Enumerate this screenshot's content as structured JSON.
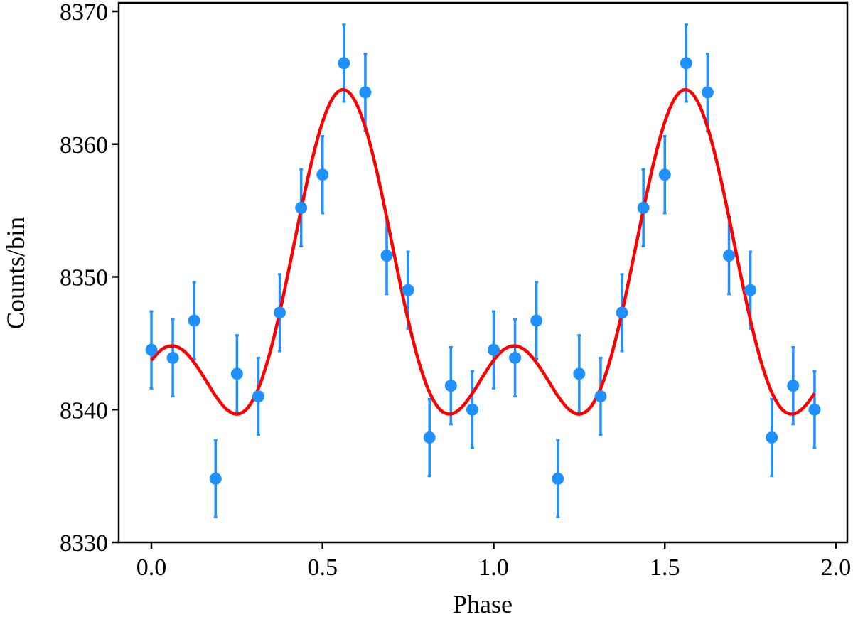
{
  "chart_data": {
    "type": "scatter",
    "title": "",
    "xlabel": "Phase",
    "ylabel": "Counts/bin",
    "xlim": [
      -0.095,
      2.03
    ],
    "ylim": [
      8330,
      8370
    ],
    "x_ticks": [
      0.0,
      0.5,
      1.0,
      1.5,
      2.0
    ],
    "x_tick_labels": [
      "0.0",
      "0.5",
      "1.0",
      "1.5",
      "2.0"
    ],
    "y_ticks": [
      8330,
      8340,
      8350,
      8360,
      8370
    ],
    "y_tick_labels": [
      "8330",
      "8340",
      "8350",
      "8360",
      "8370"
    ],
    "grid": false,
    "legend": "none",
    "series": [
      {
        "type": "errorbar",
        "color": "#1e90ff",
        "x": [
          0.0,
          0.0625,
          0.125,
          0.1875,
          0.25,
          0.3125,
          0.375,
          0.4375,
          0.5,
          0.5625,
          0.625,
          0.6875,
          0.75,
          0.8125,
          0.875,
          0.9375,
          1.0,
          1.0625,
          1.125,
          1.1875,
          1.25,
          1.3125,
          1.375,
          1.4375,
          1.5,
          1.5625,
          1.625,
          1.6875,
          1.75,
          1.8125,
          1.875,
          1.9375
        ],
        "y": [
          8344.5,
          8343.9,
          8346.7,
          8334.8,
          8342.7,
          8341.0,
          8347.3,
          8355.2,
          8357.7,
          8366.1,
          8363.9,
          8351.6,
          8349.0,
          8337.9,
          8341.8,
          8340.0,
          8344.5,
          8343.9,
          8346.7,
          8334.8,
          8342.7,
          8341.0,
          8347.3,
          8355.2,
          8357.7,
          8366.1,
          8363.9,
          8351.6,
          8349.0,
          8337.9,
          8341.8,
          8340.0
        ],
        "yerr": 2.9
      },
      {
        "type": "line",
        "color": "#ff0000",
        "x": [
          0.0,
          0.03125,
          0.0625,
          0.09375,
          0.125,
          0.15625,
          0.1875,
          0.21875,
          0.25,
          0.28125,
          0.3125,
          0.34375,
          0.375,
          0.40625,
          0.4375,
          0.46875,
          0.5,
          0.53125,
          0.5625,
          0.59375,
          0.625,
          0.65625,
          0.6875,
          0.71875,
          0.75,
          0.78125,
          0.8125,
          0.84375,
          0.875,
          0.90625,
          0.9375,
          0.96875,
          1.0,
          1.03125,
          1.0625,
          1.09375,
          1.125,
          1.15625,
          1.1875,
          1.21875,
          1.25,
          1.28125,
          1.3125,
          1.34375,
          1.375,
          1.40625,
          1.4375,
          1.46875,
          1.5,
          1.53125,
          1.5625,
          1.59375,
          1.625,
          1.65625,
          1.6875,
          1.71875,
          1.75,
          1.78125,
          1.8125,
          1.84375,
          1.875,
          1.90625,
          1.9375
        ],
        "y": [
          8343.72,
          8344.55,
          8344.8,
          8344.44,
          8343.54,
          8342.32,
          8341.03,
          8340.04,
          8339.66,
          8340.13,
          8341.6,
          8344.05,
          8347.33,
          8351.15,
          8355.08,
          8358.73,
          8361.67,
          8363.53,
          8364.1,
          8363.31,
          8361.26,
          8358.2,
          8354.47,
          8350.5,
          8346.76,
          8343.61,
          8341.3,
          8339.99,
          8339.67,
          8340.17,
          8341.22,
          8342.51,
          8343.72,
          8344.55,
          8344.8,
          8344.44,
          8343.54,
          8342.32,
          8341.03,
          8340.04,
          8339.66,
          8340.13,
          8341.6,
          8344.05,
          8347.33,
          8351.15,
          8355.08,
          8358.73,
          8361.67,
          8363.53,
          8364.1,
          8363.31,
          8361.26,
          8358.2,
          8354.47,
          8350.5,
          8346.76,
          8343.61,
          8341.3,
          8339.99,
          8339.67,
          8340.17,
          8341.22
        ]
      }
    ]
  }
}
